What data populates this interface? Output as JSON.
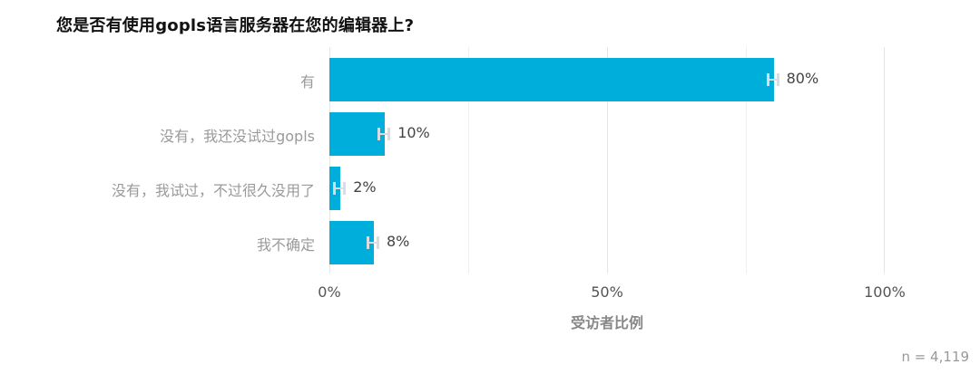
{
  "chart_data": {
    "type": "bar",
    "orientation": "horizontal",
    "title": "您是否有使用gopls语言服务器在您的编辑器上?",
    "categories": [
      "有",
      "没有，我还没试过gopls",
      "没有，我试过，不过很久没用了",
      "我不确定"
    ],
    "values": [
      80,
      10,
      2,
      8
    ],
    "value_labels": [
      "80%",
      "10%",
      "2%",
      "8%"
    ],
    "error_bars": true,
    "xlabel": "受访者比例",
    "ylabel": "",
    "xlim": [
      0,
      100
    ],
    "x_ticks": [
      "0%",
      "50%",
      "100%"
    ],
    "grid": true,
    "bar_color": "#00aedb",
    "sample_size": "n =  4,119"
  }
}
